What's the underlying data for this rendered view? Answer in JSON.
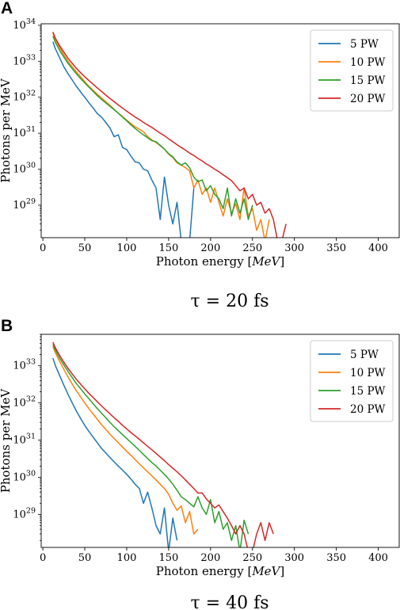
{
  "chart_data": [
    {
      "panel": "A",
      "type": "line",
      "caption": "τ = 20 fs",
      "xlabel": "Photon energy [MeV]",
      "ylabel": "Photons per MeV",
      "xlim": [
        -2,
        425
      ],
      "ylim": [
        1.25e+28,
        1.1e+34
      ],
      "yscale": "log",
      "xticks": [
        0,
        50,
        100,
        150,
        200,
        250,
        300,
        350,
        400
      ],
      "yticks": [
        {
          "value": 1e+29,
          "exp": "29"
        },
        {
          "value": 1e+30,
          "exp": "30"
        },
        {
          "value": 1e+31,
          "exp": "31"
        },
        {
          "value": 1e+32,
          "exp": "32"
        },
        {
          "value": 1e+33,
          "exp": "33"
        },
        {
          "value": 1e+34,
          "exp": "34"
        }
      ],
      "legend_position": "top-right",
      "series": [
        {
          "name": "5 PW",
          "color": "#1f77b4",
          "x": [
            12,
            15,
            20,
            25,
            30,
            35,
            40,
            45,
            50,
            55,
            60,
            65,
            70,
            75,
            80,
            85,
            90,
            95,
            100,
            105,
            110,
            115,
            120,
            125,
            130,
            135,
            140,
            145,
            150,
            155,
            160,
            165,
            170,
            175,
            180
          ],
          "y": [
            3.5e+33,
            2.2e+33,
            1.25e+33,
            7e+32,
            4.5e+32,
            3e+32,
            2e+32,
            1.4e+32,
            1e+32,
            7e+31,
            5e+31,
            3.5e+31,
            2.8e+31,
            2e+31,
            1.4e+31,
            8e+30,
            9e+30,
            4e+30,
            3.5e+30,
            2.3e+30,
            1.6e+30,
            1.5e+30,
            1e+30,
            9e+29,
            5e+29,
            3e+29,
            4e+28,
            6e+29,
            1e+29,
            3e+28,
            1.2e+29,
            1e+28,
            1e+28,
            1e+28,
            3e+29
          ]
        },
        {
          "name": "10 PW",
          "color": "#ff7f0e",
          "x": [
            12,
            15,
            20,
            25,
            30,
            35,
            40,
            45,
            50,
            55,
            60,
            65,
            70,
            75,
            80,
            85,
            90,
            95,
            100,
            105,
            110,
            115,
            120,
            125,
            130,
            135,
            140,
            145,
            150,
            155,
            160,
            165,
            170,
            175,
            180,
            185,
            190,
            195,
            200,
            205,
            210,
            215,
            220,
            225,
            230,
            235,
            240,
            245,
            250,
            255,
            260,
            265,
            270
          ],
          "y": [
            6e+33,
            4e+33,
            2.4e+33,
            1.5e+33,
            1e+33,
            7e+32,
            5e+32,
            3.7e+32,
            2.7e+32,
            2e+32,
            1.55e+32,
            1.2e+32,
            9.5e+31,
            7.5e+31,
            6e+31,
            4.6e+31,
            3.6e+31,
            2.9e+31,
            2.3e+31,
            1.85e+31,
            1.5e+31,
            1.3e+31,
            1.1e+31,
            8e+30,
            6.5e+30,
            5.5e+30,
            4.5e+30,
            3.6e+30,
            2.6e+30,
            2.1e+30,
            1.5e+30,
            1.3e+30,
            1.1e+30,
            9e+29,
            3e+29,
            5e+29,
            2e+29,
            3e+29,
            1.2e+29,
            3e+29,
            1.2e+29,
            5e+28,
            1.5e+29,
            6e+28,
            1.1e+29,
            4e+28,
            3e+29,
            5e+28,
            8e+28,
            2e+28,
            4e+28,
            1e+28,
            4e+28
          ]
        },
        {
          "name": "15 PW",
          "color": "#2ca02c",
          "x": [
            12,
            15,
            20,
            25,
            30,
            35,
            40,
            45,
            50,
            55,
            60,
            65,
            70,
            75,
            80,
            85,
            90,
            95,
            100,
            105,
            110,
            115,
            120,
            125,
            130,
            135,
            140,
            145,
            150,
            155,
            160,
            165,
            170,
            175,
            180,
            185,
            190,
            195,
            200,
            205,
            210,
            215,
            220,
            225,
            230,
            235,
            240,
            245,
            250
          ],
          "y": [
            5e+33,
            3.3e+33,
            2e+33,
            1.3e+33,
            8.7e+32,
            6.2e+32,
            4.5e+32,
            3.3e+32,
            2.5e+32,
            1.9e+32,
            1.45e+32,
            1.1e+32,
            8.7e+31,
            7e+31,
            5.6e+31,
            4.5e+31,
            3.6e+31,
            2.8e+31,
            2.2e+31,
            1.7e+31,
            1.35e+31,
            1.1e+31,
            9e+30,
            7.5e+30,
            6.2e+30,
            5.8e+30,
            4.6e+30,
            3.6e+30,
            2.7e+30,
            2.2e+30,
            1.6e+30,
            1.3e+30,
            1.5e+30,
            1.1e+30,
            6e+29,
            4.5e+29,
            5e+29,
            2.5e+29,
            3.5e+29,
            2e+29,
            1.5e+29,
            8e+28,
            3e+29,
            5e+28,
            1.5e+29,
            6e+28,
            1.5e+29,
            4e+28,
            1e+29
          ]
        },
        {
          "name": "20 PW",
          "color": "#d62728",
          "x": [
            12,
            15,
            20,
            25,
            30,
            35,
            40,
            45,
            50,
            55,
            60,
            65,
            70,
            75,
            80,
            85,
            90,
            95,
            100,
            105,
            110,
            115,
            120,
            125,
            130,
            135,
            140,
            145,
            150,
            155,
            160,
            165,
            170,
            175,
            180,
            185,
            190,
            195,
            200,
            205,
            210,
            215,
            220,
            225,
            230,
            235,
            240,
            245,
            250,
            255,
            260,
            265,
            270,
            275,
            280,
            285,
            290
          ],
          "y": [
            6.5e+33,
            4.3e+33,
            2.7e+33,
            1.8e+33,
            1.2e+33,
            8.7e+32,
            6.3e+32,
            4.8e+32,
            3.7e+32,
            2.9e+32,
            2.3e+32,
            1.8e+32,
            1.45e+32,
            1.15e+32,
            9.3e+31,
            7.5e+31,
            6.1e+31,
            5e+31,
            4.1e+31,
            3.4e+31,
            2.8e+31,
            2.4e+31,
            2e+31,
            1.7e+31,
            1.45e+31,
            1.2e+31,
            1e+31,
            8.5e+30,
            7e+30,
            5.8e+30,
            4.8e+30,
            4e+30,
            3.4e+30,
            2.8e+30,
            2.4e+30,
            2e+30,
            1.7e+30,
            1.4e+30,
            1.2e+30,
            1e+30,
            8.5e+29,
            7e+29,
            5.8e+29,
            4.8e+29,
            3.5e+29,
            2.5e+29,
            3e+29,
            1.5e+29,
            2e+29,
            1e+29,
            1.2e+29,
            6e+28,
            8e+28,
            4e+28,
            1e+28,
            1e+28,
            3e+28
          ]
        }
      ]
    },
    {
      "panel": "B",
      "type": "line",
      "caption": "τ = 40 fs",
      "xlabel": "Photon energy [MeV]",
      "ylabel": "Photons per MeV",
      "xlim": [
        -2,
        425
      ],
      "ylim": [
        1.3e+28,
        7e+33
      ],
      "yscale": "log",
      "xticks": [
        0,
        50,
        100,
        150,
        200,
        250,
        300,
        350,
        400
      ],
      "yticks": [
        {
          "value": 1e+29,
          "exp": "29"
        },
        {
          "value": 1e+30,
          "exp": "30"
        },
        {
          "value": 1e+31,
          "exp": "31"
        },
        {
          "value": 1e+32,
          "exp": "32"
        },
        {
          "value": 1e+33,
          "exp": "33"
        }
      ],
      "legend_position": "top-right",
      "series": [
        {
          "name": "5 PW",
          "color": "#1f77b4",
          "x": [
            12,
            15,
            20,
            25,
            30,
            35,
            40,
            45,
            50,
            55,
            60,
            65,
            70,
            75,
            80,
            85,
            90,
            95,
            100,
            105,
            110,
            115,
            120,
            125,
            130,
            135,
            140,
            145,
            150,
            155,
            160
          ],
          "y": [
            1.6e+33,
            1e+33,
            5.5e+32,
            3e+32,
            1.7e+32,
            1e+32,
            6e+31,
            3.8e+31,
            2.5e+31,
            1.7e+31,
            1.2e+31,
            8.5e+30,
            6e+30,
            4.5e+30,
            3.4e+30,
            2.6e+30,
            2e+30,
            1.55e+30,
            1.2e+30,
            9e+29,
            6.5e+29,
            5e+29,
            2e+29,
            4e+29,
            1.5e+29,
            5e+28,
            3e+28,
            1.5e+29,
            1e+28,
            8e+28,
            2e+28
          ]
        },
        {
          "name": "10 PW",
          "color": "#ff7f0e",
          "x": [
            12,
            15,
            20,
            25,
            30,
            35,
            40,
            45,
            50,
            55,
            60,
            65,
            70,
            75,
            80,
            85,
            90,
            95,
            100,
            105,
            110,
            115,
            120,
            125,
            130,
            135,
            140,
            145,
            150,
            155,
            160,
            165,
            170,
            175,
            180,
            185
          ],
          "y": [
            3.3e+33,
            2.2e+33,
            1.3e+33,
            8e+32,
            5e+32,
            3.2e+32,
            2.1e+32,
            1.45e+32,
            1e+32,
            7e+31,
            5e+31,
            3.6e+31,
            2.6e+31,
            1.95e+31,
            1.45e+31,
            1.1e+31,
            8.5e+30,
            6.5e+30,
            5e+30,
            3.9e+30,
            3e+30,
            2.3e+30,
            1.8e+30,
            1.4e+30,
            1.1e+30,
            8.5e+29,
            6.5e+29,
            5e+29,
            3.5e+29,
            2e+29,
            1.3e+29,
            1.7e+29,
            6e+28,
            1.2e+29,
            3e+28,
            4e+28
          ]
        },
        {
          "name": "15 PW",
          "color": "#2ca02c",
          "x": [
            12,
            15,
            20,
            25,
            30,
            35,
            40,
            45,
            50,
            55,
            60,
            65,
            70,
            75,
            80,
            85,
            90,
            95,
            100,
            105,
            110,
            115,
            120,
            125,
            130,
            135,
            140,
            145,
            150,
            155,
            160,
            165,
            170,
            175,
            180,
            185,
            190,
            195,
            200,
            205,
            210,
            215,
            220,
            225,
            230,
            235,
            240,
            245
          ],
          "y": [
            3.8e+33,
            2.6e+33,
            1.6e+33,
            1.05e+33,
            7e+32,
            4.8e+32,
            3.3e+32,
            2.4e+32,
            1.75e+32,
            1.3e+32,
            9.5e+31,
            7e+31,
            5.3e+31,
            4e+31,
            3e+31,
            2.3e+31,
            1.8e+31,
            1.4e+31,
            1.1e+31,
            8.7e+30,
            6.8e+30,
            5.3e+30,
            4.1e+30,
            3.2e+30,
            2.5e+30,
            2e+30,
            1.55e+30,
            1.2e+30,
            9e+29,
            6.5e+29,
            4.5e+29,
            3e+29,
            2.5e+29,
            2e+29,
            1.6e+29,
            3e+29,
            1.5e+29,
            1e+29,
            2.5e+29,
            6e+28,
            1.2e+29,
            4e+28,
            6e+28,
            2e+28,
            5e+28,
            1e+28,
            7e+28,
            3e+28
          ]
        },
        {
          "name": "20 PW",
          "color": "#d62728",
          "x": [
            12,
            15,
            20,
            25,
            30,
            35,
            40,
            45,
            50,
            55,
            60,
            65,
            70,
            75,
            80,
            85,
            90,
            95,
            100,
            105,
            110,
            115,
            120,
            125,
            130,
            135,
            140,
            145,
            150,
            155,
            160,
            165,
            170,
            175,
            180,
            185,
            190,
            195,
            200,
            205,
            210,
            215,
            220,
            225,
            230,
            235,
            240,
            245,
            250,
            255,
            260,
            265,
            270,
            275
          ],
          "y": [
            4.3e+33,
            3e+33,
            1.9e+33,
            1.25e+33,
            8.5e+32,
            6e+32,
            4.3e+32,
            3.2e+32,
            2.4e+32,
            1.8e+32,
            1.4e+32,
            1.07e+32,
            8.3e+31,
            6.5e+31,
            5.1e+31,
            4e+31,
            3.2e+31,
            2.5e+31,
            2e+31,
            1.6e+31,
            1.3e+31,
            1.05e+31,
            8.5e+30,
            6.8e+30,
            5.5e+30,
            4.4e+30,
            3.5e+30,
            2.8e+30,
            2.2e+30,
            1.75e+30,
            1.4e+30,
            1.1e+30,
            8.5e+29,
            6.5e+29,
            5e+29,
            3.8e+29,
            3.8e+29,
            2.6e+29,
            2e+29,
            1.5e+29,
            1.8e+29,
            1.2e+29,
            8e+28,
            5e+28,
            3e+28,
            5e+28,
            3e+28,
            1e+28,
            1e+28,
            3e+28,
            6e+28,
            2e+28,
            6e+28,
            3e+28
          ]
        }
      ]
    }
  ]
}
